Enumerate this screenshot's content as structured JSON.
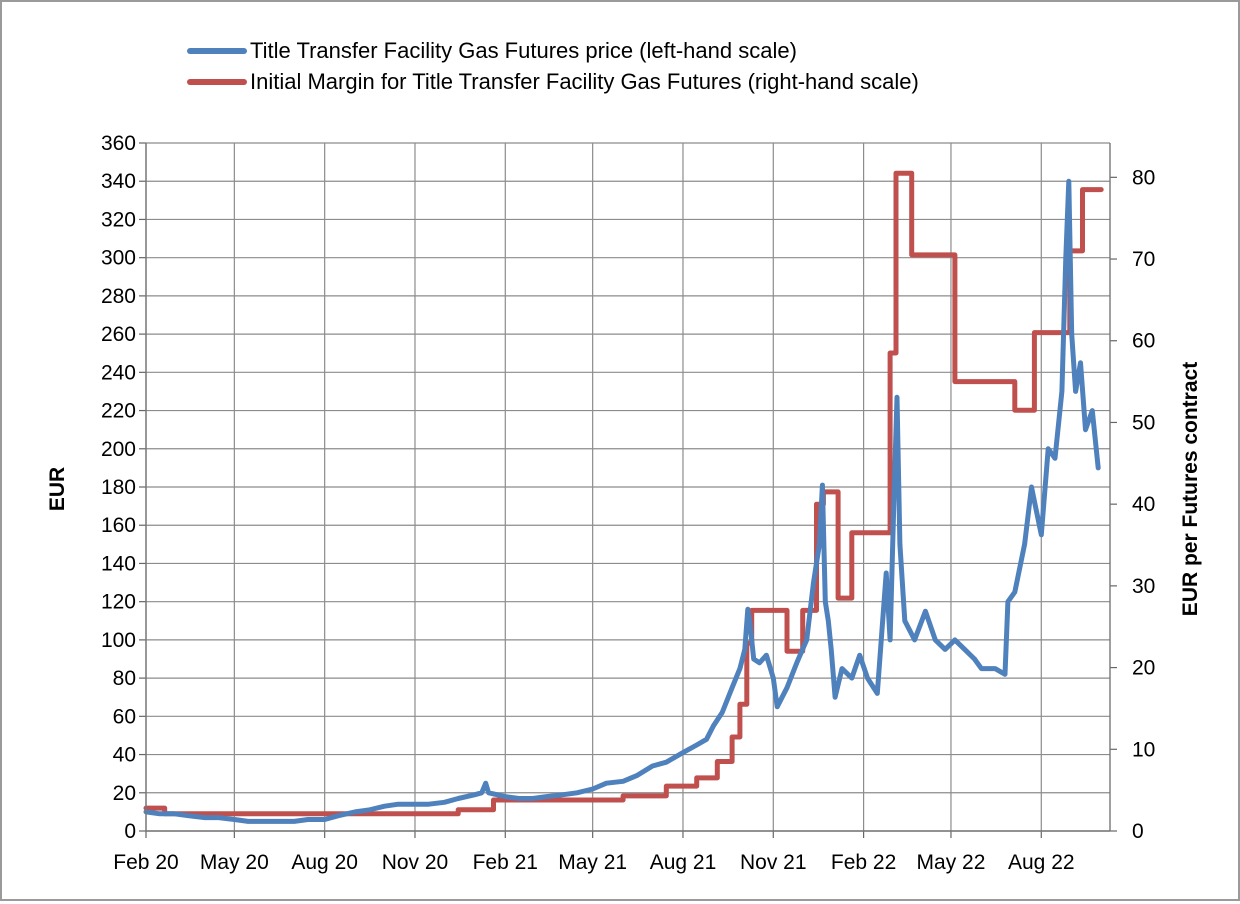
{
  "chart_data": {
    "type": "line",
    "title": "",
    "left_axis": {
      "label": "EUR",
      "ylim": [
        0,
        360
      ],
      "ticks": [
        0,
        20,
        40,
        60,
        80,
        100,
        120,
        140,
        160,
        180,
        200,
        220,
        240,
        260,
        280,
        300,
        320,
        340,
        360
      ]
    },
    "right_axis": {
      "label": "EUR per Futures contract",
      "ylim": [
        0,
        84.2
      ],
      "ticks": [
        0,
        10,
        20,
        30,
        40,
        50,
        60,
        70,
        80
      ]
    },
    "x_axis": {
      "label": "",
      "xlim": [
        "2020-02-01",
        "2022-10-10"
      ],
      "tick_dates": [
        "2020-02-01",
        "2020-05-01",
        "2020-08-01",
        "2020-11-01",
        "2021-02-01",
        "2021-05-01",
        "2021-08-01",
        "2021-11-01",
        "2022-02-01",
        "2022-05-01",
        "2022-08-01"
      ],
      "tick_labels": [
        "Feb 20",
        "May 20",
        "Aug 20",
        "Nov 20",
        "Feb 21",
        "May 21",
        "Aug 21",
        "Nov 21",
        "Feb 22",
        "May 22",
        "Aug 22"
      ]
    },
    "grid": true,
    "legend_position": "top",
    "series": [
      {
        "name": "Title Transfer Facility Gas Futures price (left-hand scale)",
        "axis": "left",
        "color": "#4f81bd",
        "points": [
          [
            "2020-02-01",
            10
          ],
          [
            "2020-02-15",
            9
          ],
          [
            "2020-03-01",
            9
          ],
          [
            "2020-03-15",
            8
          ],
          [
            "2020-04-01",
            7
          ],
          [
            "2020-04-15",
            7
          ],
          [
            "2020-05-01",
            6
          ],
          [
            "2020-05-15",
            5
          ],
          [
            "2020-06-01",
            5
          ],
          [
            "2020-06-15",
            5
          ],
          [
            "2020-07-01",
            5
          ],
          [
            "2020-07-15",
            6
          ],
          [
            "2020-08-01",
            6
          ],
          [
            "2020-08-15",
            8
          ],
          [
            "2020-09-01",
            10
          ],
          [
            "2020-09-15",
            11
          ],
          [
            "2020-10-01",
            13
          ],
          [
            "2020-10-15",
            14
          ],
          [
            "2020-11-01",
            14
          ],
          [
            "2020-11-15",
            14
          ],
          [
            "2020-12-01",
            15
          ],
          [
            "2020-12-15",
            17
          ],
          [
            "2021-01-01",
            19
          ],
          [
            "2021-01-08",
            20
          ],
          [
            "2021-01-12",
            25
          ],
          [
            "2021-01-15",
            20
          ],
          [
            "2021-02-01",
            18
          ],
          [
            "2021-02-15",
            17
          ],
          [
            "2021-03-01",
            17
          ],
          [
            "2021-03-15",
            18
          ],
          [
            "2021-04-01",
            19
          ],
          [
            "2021-04-15",
            20
          ],
          [
            "2021-05-01",
            22
          ],
          [
            "2021-05-15",
            25
          ],
          [
            "2021-06-01",
            26
          ],
          [
            "2021-06-15",
            29
          ],
          [
            "2021-07-01",
            34
          ],
          [
            "2021-07-15",
            36
          ],
          [
            "2021-08-01",
            41
          ],
          [
            "2021-08-15",
            45
          ],
          [
            "2021-08-25",
            48
          ],
          [
            "2021-09-01",
            55
          ],
          [
            "2021-09-10",
            62
          ],
          [
            "2021-09-20",
            75
          ],
          [
            "2021-09-28",
            85
          ],
          [
            "2021-10-03",
            95
          ],
          [
            "2021-10-06",
            116
          ],
          [
            "2021-10-08",
            110
          ],
          [
            "2021-10-12",
            90
          ],
          [
            "2021-10-18",
            88
          ],
          [
            "2021-10-25",
            92
          ],
          [
            "2021-11-01",
            80
          ],
          [
            "2021-11-05",
            65
          ],
          [
            "2021-11-15",
            75
          ],
          [
            "2021-11-25",
            88
          ],
          [
            "2021-12-05",
            100
          ],
          [
            "2021-12-12",
            130
          ],
          [
            "2021-12-18",
            150
          ],
          [
            "2021-12-21",
            181
          ],
          [
            "2021-12-24",
            120
          ],
          [
            "2021-12-27",
            110
          ],
          [
            "2021-12-30",
            95
          ],
          [
            "2022-01-03",
            70
          ],
          [
            "2022-01-10",
            85
          ],
          [
            "2022-01-20",
            80
          ],
          [
            "2022-01-28",
            92
          ],
          [
            "2022-02-05",
            80
          ],
          [
            "2022-02-15",
            72
          ],
          [
            "2022-02-24",
            135
          ],
          [
            "2022-02-28",
            100
          ],
          [
            "2022-03-04",
            175
          ],
          [
            "2022-03-07",
            227
          ],
          [
            "2022-03-10",
            150
          ],
          [
            "2022-03-15",
            110
          ],
          [
            "2022-03-25",
            100
          ],
          [
            "2022-04-05",
            115
          ],
          [
            "2022-04-15",
            100
          ],
          [
            "2022-04-25",
            95
          ],
          [
            "2022-05-05",
            100
          ],
          [
            "2022-05-15",
            95
          ],
          [
            "2022-05-25",
            90
          ],
          [
            "2022-06-01",
            85
          ],
          [
            "2022-06-15",
            85
          ],
          [
            "2022-06-25",
            82
          ],
          [
            "2022-06-28",
            120
          ],
          [
            "2022-07-05",
            125
          ],
          [
            "2022-07-15",
            150
          ],
          [
            "2022-07-22",
            180
          ],
          [
            "2022-07-26",
            170
          ],
          [
            "2022-08-01",
            155
          ],
          [
            "2022-08-08",
            200
          ],
          [
            "2022-08-15",
            195
          ],
          [
            "2022-08-22",
            230
          ],
          [
            "2022-08-26",
            300
          ],
          [
            "2022-08-29",
            340
          ],
          [
            "2022-09-01",
            260
          ],
          [
            "2022-09-05",
            230
          ],
          [
            "2022-09-10",
            245
          ],
          [
            "2022-09-15",
            210
          ],
          [
            "2022-09-22",
            220
          ],
          [
            "2022-09-28",
            190
          ]
        ]
      },
      {
        "name": "Initial Margin for Title Transfer Facility Gas Futures (right-hand scale)",
        "axis": "right",
        "color": "#c0504d",
        "points": [
          [
            "2020-02-01",
            2.8
          ],
          [
            "2020-02-20",
            2.8
          ],
          [
            "2020-02-20",
            2.1
          ],
          [
            "2020-12-15",
            2.1
          ],
          [
            "2020-12-15",
            2.6
          ],
          [
            "2021-01-20",
            2.6
          ],
          [
            "2021-01-20",
            3.8
          ],
          [
            "2021-06-01",
            3.8
          ],
          [
            "2021-06-01",
            4.3
          ],
          [
            "2021-07-15",
            4.3
          ],
          [
            "2021-07-15",
            5.5
          ],
          [
            "2021-08-15",
            5.5
          ],
          [
            "2021-08-15",
            6.5
          ],
          [
            "2021-09-05",
            6.5
          ],
          [
            "2021-09-05",
            8.5
          ],
          [
            "2021-09-20",
            8.5
          ],
          [
            "2021-09-20",
            11.5
          ],
          [
            "2021-09-28",
            11.5
          ],
          [
            "2021-09-28",
            15.5
          ],
          [
            "2021-10-05",
            15.5
          ],
          [
            "2021-10-05",
            23
          ],
          [
            "2021-10-10",
            23
          ],
          [
            "2021-10-10",
            27
          ],
          [
            "2021-11-15",
            27
          ],
          [
            "2021-11-15",
            22
          ],
          [
            "2021-12-01",
            22
          ],
          [
            "2021-12-01",
            27
          ],
          [
            "2021-12-15",
            27
          ],
          [
            "2021-12-15",
            40
          ],
          [
            "2021-12-22",
            40
          ],
          [
            "2021-12-22",
            41.5
          ],
          [
            "2022-01-06",
            41.5
          ],
          [
            "2022-01-06",
            28.5
          ],
          [
            "2022-01-20",
            28.5
          ],
          [
            "2022-01-20",
            36.5
          ],
          [
            "2022-02-28",
            36.5
          ],
          [
            "2022-02-28",
            58.5
          ],
          [
            "2022-03-06",
            58.5
          ],
          [
            "2022-03-06",
            80.5
          ],
          [
            "2022-03-22",
            80.5
          ],
          [
            "2022-03-22",
            70.5
          ],
          [
            "2022-05-05",
            70.5
          ],
          [
            "2022-05-05",
            55
          ],
          [
            "2022-07-05",
            55
          ],
          [
            "2022-07-05",
            51.5
          ],
          [
            "2022-07-25",
            51.5
          ],
          [
            "2022-07-25",
            61
          ],
          [
            "2022-08-30",
            61
          ],
          [
            "2022-08-30",
            71
          ],
          [
            "2022-09-12",
            71
          ],
          [
            "2022-09-12",
            78.5
          ],
          [
            "2022-10-01",
            78.5
          ]
        ]
      }
    ]
  }
}
